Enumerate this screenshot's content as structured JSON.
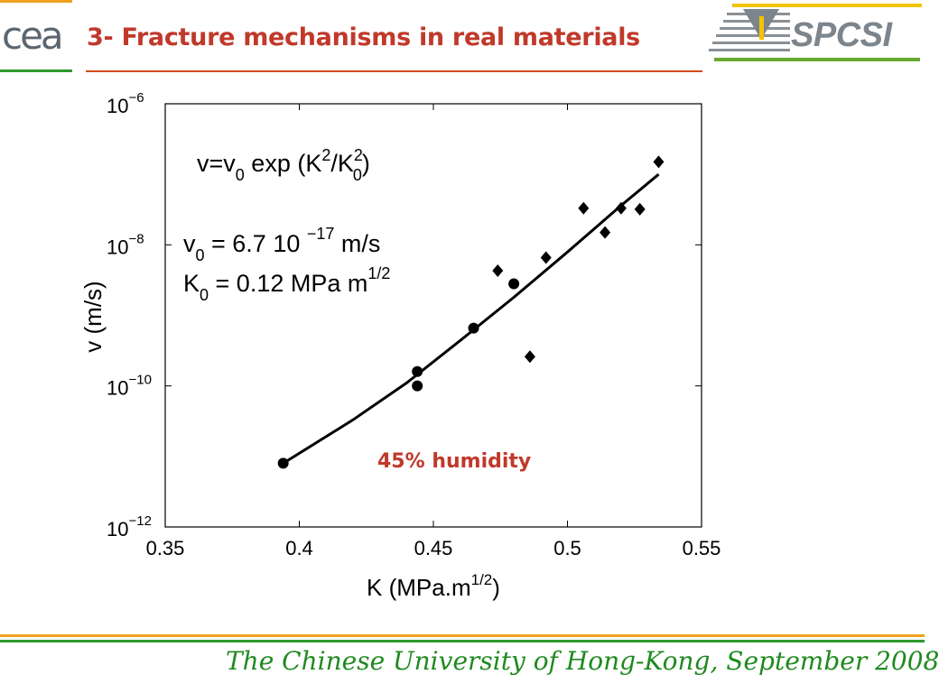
{
  "slide": {
    "title": "3- Fracture mechanisms in real materials",
    "footer": "The Chinese University of Hong-Kong, September 2008",
    "logo_left": "cea",
    "logo_right": "SPCSI",
    "colors": {
      "title": "#c0392b",
      "rule": "#d24a1c",
      "green": "#2e9a2e",
      "orange": "#f0a020",
      "footer_text": "#1f8a1f"
    }
  },
  "chart_data": {
    "type": "scatter",
    "xlabel": "K (MPa.m",
    "xlabel_sup": "1/2",
    "xlabel_end": ")",
    "ylabel": "v (m/s)",
    "xlim": [
      0.35,
      0.55
    ],
    "ylim": [
      1e-12,
      1e-06
    ],
    "y_scale": "log",
    "x_ticks": [
      0.35,
      0.4,
      0.45,
      0.5,
      0.55
    ],
    "x_tick_labels": [
      "0.35",
      "0.4",
      "0.45",
      "0.5",
      "0.55"
    ],
    "y_ticks": [
      1e-12,
      1e-10,
      1e-08,
      1e-06
    ],
    "y_tick_labels": [
      {
        "base": "10",
        "exp": "−12"
      },
      {
        "base": "10",
        "exp": "−10"
      },
      {
        "base": "10",
        "exp": "−8"
      },
      {
        "base": "10",
        "exp": "−6"
      }
    ],
    "grid": false,
    "series": [
      {
        "marker": "circle",
        "points": [
          [
            0.394,
            8e-12
          ],
          [
            0.444,
            1.6e-10
          ],
          [
            0.444,
            1e-10
          ],
          [
            0.465,
            6.6e-10
          ],
          [
            0.48,
            2.8e-09
          ]
        ]
      },
      {
        "marker": "diamond",
        "points": [
          [
            0.474,
            4.3e-09
          ],
          [
            0.486,
            2.6e-10
          ],
          [
            0.492,
            6.6e-09
          ],
          [
            0.506,
            3.3e-08
          ],
          [
            0.514,
            1.5e-08
          ],
          [
            0.52,
            3.3e-08
          ],
          [
            0.527,
            3.2e-08
          ],
          [
            0.534,
            1.5e-07
          ]
        ]
      },
      {
        "marker": "line",
        "points": [
          [
            0.394,
            8e-12
          ],
          [
            0.42,
            3.3e-11
          ],
          [
            0.44,
            1.1e-10
          ],
          [
            0.46,
            4.4e-10
          ],
          [
            0.48,
            1.8e-09
          ],
          [
            0.5,
            7.9e-09
          ],
          [
            0.52,
            3.6e-08
          ],
          [
            0.534,
            1e-07
          ]
        ]
      }
    ],
    "annotations": {
      "formula": {
        "lead": "v=v",
        "sub1": "0",
        "mid": " exp (K",
        "sup1": "2",
        "slash": "/K",
        "sup2": "2",
        "sub2": "0",
        "tail": ")"
      },
      "v0": {
        "lead": "v",
        "sub": "0",
        "mid": " = 6.7 10 ",
        "sup": "−17",
        "tail": " m/s"
      },
      "k0": {
        "lead": "K",
        "sub": "0",
        "mid": " = 0.12 MPa m",
        "sup": "1/2"
      },
      "humidity": "45% humidity"
    }
  }
}
